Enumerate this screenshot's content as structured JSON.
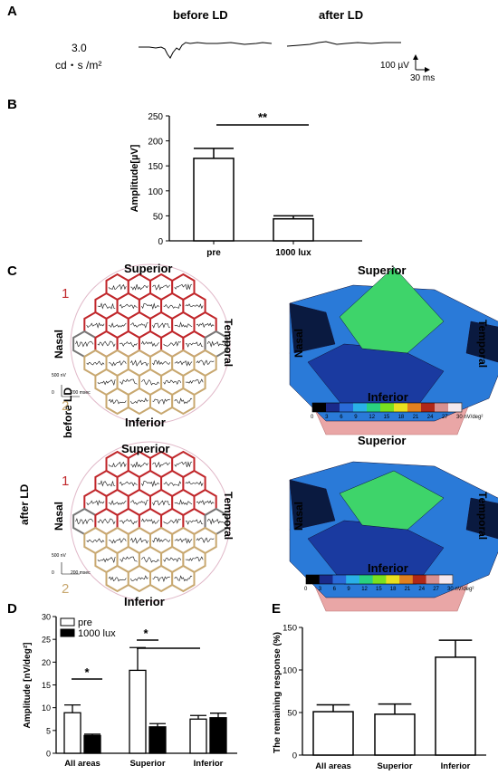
{
  "panels": {
    "a": "A",
    "b": "B",
    "c": "C",
    "d": "D",
    "e": "E"
  },
  "panel_a": {
    "before": "before LD",
    "after": "after LD",
    "intensity_line1": "3.0",
    "intensity_line2": "cd・s /m²",
    "scale_v": "100 µV",
    "scale_t": "30 ms"
  },
  "panel_c": {
    "row1": "before LD",
    "row2": "after LD",
    "superior": "Superior",
    "inferior": "Inferior",
    "nasal": "Nasal",
    "temporal": "Temporal",
    "region1": "1",
    "region2": "2",
    "scale_nv": "500 nV",
    "scale_zero": "0",
    "scale_ms": "200 msec",
    "colorbar_ticks": [
      "0",
      "3",
      "6",
      "9",
      "12",
      "15",
      "18",
      "21",
      "24",
      "27",
      "30 nV/deg²"
    ],
    "colorbar_colors": [
      "#000000",
      "#1a2a8a",
      "#2a6ad8",
      "#2ab0e8",
      "#2ad080",
      "#7ae020",
      "#e8e020",
      "#e08020",
      "#b02818",
      "#d89090",
      "#f4e8ee"
    ],
    "region_colors": {
      "superior": "#c0262a",
      "inferior": "#c8a870"
    }
  },
  "chart_data": [
    {
      "type": "bar",
      "panel": "B",
      "categories": [
        "pre",
        "1000 lux"
      ],
      "values": [
        165,
        44
      ],
      "errors": [
        20,
        6
      ],
      "ylabel": "Amplitude[µV]",
      "ylim": [
        0,
        250
      ],
      "yticks": [
        "0",
        "50",
        "100",
        "150",
        "200",
        "250"
      ],
      "significance": "**"
    },
    {
      "type": "bar",
      "panel": "D",
      "categories": [
        "All areas",
        "Superior",
        "Inferior"
      ],
      "series": [
        {
          "name": "pre",
          "values": [
            8.9,
            18.2,
            7.5
          ],
          "errors": [
            1.7,
            5.0,
            0.8
          ],
          "color": "#ffffff"
        },
        {
          "name": "1000 lux",
          "values": [
            3.9,
            5.8,
            7.8
          ],
          "errors": [
            0.3,
            0.7,
            1.0
          ],
          "color": "#000000"
        }
      ],
      "ylabel": "Amplitude [nV/deg²]",
      "ylim": [
        0,
        30
      ],
      "yticks": [
        "0",
        "5",
        "10",
        "15",
        "20",
        "25",
        "30"
      ],
      "significance": [
        "*",
        "*"
      ]
    },
    {
      "type": "bar",
      "panel": "E",
      "categories": [
        "All areas",
        "Superior",
        "Inferior"
      ],
      "values": [
        51,
        48,
        115
      ],
      "errors": [
        8,
        12,
        20
      ],
      "ylabel": "The remaining response (%)",
      "ylim": [
        0,
        150
      ],
      "yticks": [
        "0",
        "50",
        "100",
        "150"
      ]
    }
  ]
}
